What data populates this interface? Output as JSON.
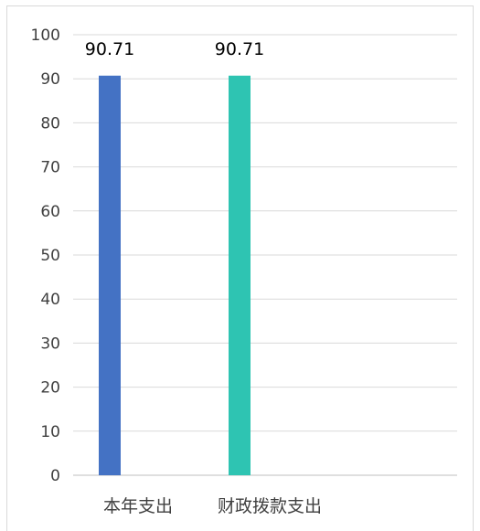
{
  "chart_data": {
    "type": "bar",
    "categories": [
      "本年支出",
      "财政拨款支出"
    ],
    "values": [
      90.71,
      90.71
    ],
    "value_labels": [
      "90.71",
      "90.71"
    ],
    "colors": [
      "#4472c4",
      "#2ec4b2"
    ],
    "ylim": [
      0,
      100
    ],
    "yticks": [
      0,
      10,
      20,
      30,
      40,
      50,
      60,
      70,
      80,
      90,
      100
    ],
    "grid": true,
    "legend": "none",
    "title": "",
    "xlabel": "",
    "ylabel": ""
  }
}
